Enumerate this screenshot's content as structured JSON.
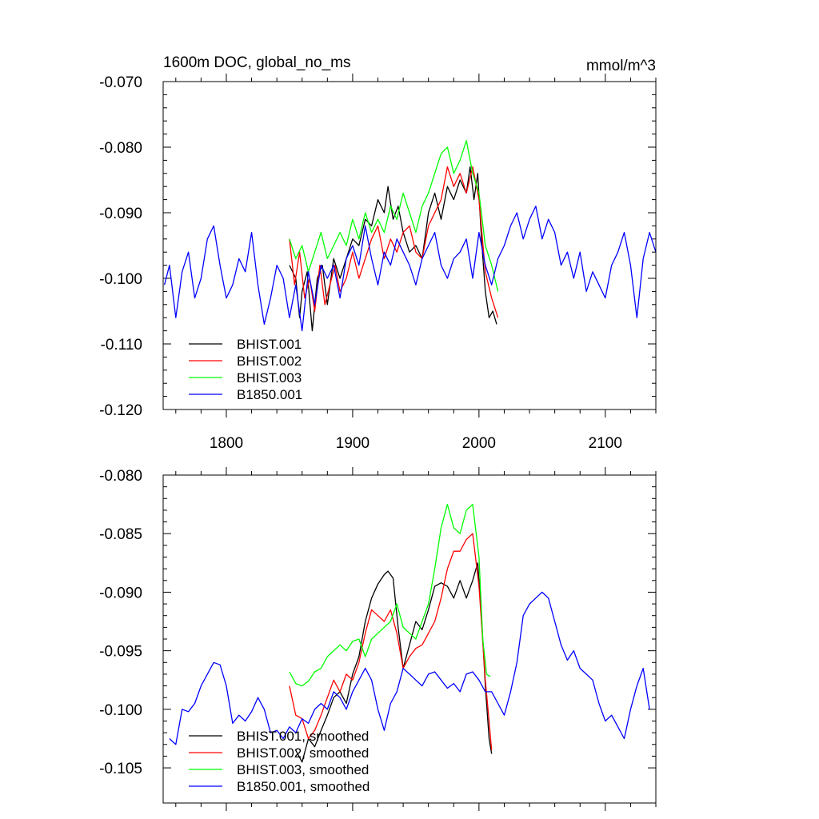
{
  "chart_data": [
    {
      "type": "line",
      "title": "1600m DOC, global_no_ms",
      "units_label": "mmol/m^3",
      "xlim": [
        1750,
        2140
      ],
      "ylim": [
        -0.12,
        -0.07
      ],
      "xticks": [
        1800,
        1900,
        2000,
        2100
      ],
      "yticks": [
        -0.12,
        -0.11,
        -0.1,
        -0.09,
        -0.08,
        -0.07
      ],
      "ytick_labels": [
        "-0.120",
        "-0.110",
        "-0.100",
        "-0.090",
        "-0.080",
        "-0.070"
      ],
      "legend_position": "bottom-left",
      "grid": false,
      "series": [
        {
          "name": "BHIST.001",
          "color": "#000000",
          "x": [
            1850,
            1855,
            1858,
            1860,
            1864,
            1868,
            1872,
            1876,
            1880,
            1885,
            1890,
            1895,
            1900,
            1905,
            1910,
            1915,
            1920,
            1925,
            1928,
            1932,
            1936,
            1940,
            1945,
            1950,
            1955,
            1960,
            1965,
            1970,
            1975,
            1980,
            1985,
            1990,
            1993,
            1996,
            1999,
            2002,
            2005,
            2008,
            2011,
            2014
          ],
          "y": [
            -0.098,
            -0.1,
            -0.106,
            -0.102,
            -0.099,
            -0.108,
            -0.1,
            -0.098,
            -0.104,
            -0.097,
            -0.1,
            -0.097,
            -0.094,
            -0.095,
            -0.091,
            -0.092,
            -0.088,
            -0.09,
            -0.086,
            -0.091,
            -0.089,
            -0.093,
            -0.096,
            -0.095,
            -0.097,
            -0.09,
            -0.087,
            -0.091,
            -0.086,
            -0.088,
            -0.085,
            -0.087,
            -0.083,
            -0.088,
            -0.084,
            -0.094,
            -0.102,
            -0.106,
            -0.105,
            -0.107
          ]
        },
        {
          "name": "BHIST.002",
          "color": "#ff0000",
          "x": [
            1850,
            1854,
            1858,
            1862,
            1866,
            1870,
            1874,
            1878,
            1882,
            1886,
            1890,
            1895,
            1900,
            1905,
            1910,
            1915,
            1920,
            1925,
            1930,
            1935,
            1940,
            1945,
            1950,
            1955,
            1960,
            1965,
            1970,
            1975,
            1980,
            1985,
            1990,
            1995,
            2000,
            2005,
            2010,
            2015
          ],
          "y": [
            -0.094,
            -0.101,
            -0.096,
            -0.103,
            -0.1,
            -0.105,
            -0.098,
            -0.104,
            -0.101,
            -0.098,
            -0.102,
            -0.1,
            -0.096,
            -0.1,
            -0.097,
            -0.094,
            -0.092,
            -0.097,
            -0.094,
            -0.096,
            -0.093,
            -0.092,
            -0.096,
            -0.097,
            -0.092,
            -0.09,
            -0.088,
            -0.083,
            -0.086,
            -0.084,
            -0.087,
            -0.083,
            -0.088,
            -0.099,
            -0.103,
            -0.106
          ]
        },
        {
          "name": "BHIST.003",
          "color": "#00ff00",
          "x": [
            1850,
            1855,
            1860,
            1865,
            1870,
            1875,
            1880,
            1885,
            1890,
            1895,
            1900,
            1905,
            1910,
            1915,
            1920,
            1925,
            1930,
            1935,
            1940,
            1945,
            1950,
            1955,
            1960,
            1965,
            1970,
            1975,
            1980,
            1985,
            1990,
            1995,
            2000,
            2005,
            2010,
            2015
          ],
          "y": [
            -0.094,
            -0.097,
            -0.095,
            -0.099,
            -0.096,
            -0.093,
            -0.097,
            -0.095,
            -0.093,
            -0.095,
            -0.091,
            -0.094,
            -0.09,
            -0.093,
            -0.091,
            -0.093,
            -0.089,
            -0.091,
            -0.087,
            -0.09,
            -0.093,
            -0.089,
            -0.087,
            -0.084,
            -0.081,
            -0.08,
            -0.084,
            -0.082,
            -0.079,
            -0.084,
            -0.087,
            -0.095,
            -0.098,
            -0.102
          ]
        },
        {
          "name": "B1850.001",
          "color": "#0000ff",
          "x": [
            1751,
            1755,
            1760,
            1765,
            1770,
            1775,
            1780,
            1785,
            1790,
            1795,
            1800,
            1805,
            1810,
            1815,
            1820,
            1825,
            1830,
            1835,
            1840,
            1845,
            1850,
            1855,
            1860,
            1865,
            1870,
            1875,
            1880,
            1885,
            1890,
            1895,
            1900,
            1905,
            1910,
            1915,
            1920,
            1925,
            1930,
            1935,
            1940,
            1945,
            1950,
            1955,
            1960,
            1965,
            1970,
            1975,
            1980,
            1985,
            1990,
            1995,
            2000,
            2005,
            2010,
            2015,
            2020,
            2025,
            2030,
            2035,
            2040,
            2045,
            2050,
            2055,
            2060,
            2065,
            2070,
            2075,
            2080,
            2085,
            2090,
            2095,
            2100,
            2105,
            2110,
            2115,
            2120,
            2125,
            2130,
            2135,
            2140
          ],
          "y": [
            -0.101,
            -0.098,
            -0.106,
            -0.099,
            -0.096,
            -0.103,
            -0.1,
            -0.094,
            -0.092,
            -0.098,
            -0.103,
            -0.101,
            -0.097,
            -0.099,
            -0.093,
            -0.101,
            -0.107,
            -0.103,
            -0.098,
            -0.1,
            -0.106,
            -0.101,
            -0.108,
            -0.099,
            -0.104,
            -0.098,
            -0.1,
            -0.098,
            -0.103,
            -0.097,
            -0.095,
            -0.098,
            -0.092,
            -0.097,
            -0.101,
            -0.096,
            -0.098,
            -0.094,
            -0.096,
            -0.098,
            -0.101,
            -0.097,
            -0.095,
            -0.093,
            -0.098,
            -0.1,
            -0.097,
            -0.096,
            -0.094,
            -0.1,
            -0.093,
            -0.098,
            -0.101,
            -0.097,
            -0.095,
            -0.092,
            -0.09,
            -0.094,
            -0.091,
            -0.089,
            -0.094,
            -0.091,
            -0.093,
            -0.098,
            -0.096,
            -0.1,
            -0.096,
            -0.102,
            -0.099,
            -0.101,
            -0.103,
            -0.098,
            -0.096,
            -0.093,
            -0.098,
            -0.106,
            -0.097,
            -0.093,
            -0.096
          ]
        }
      ]
    },
    {
      "type": "line",
      "xlim": [
        1750,
        2140
      ],
      "ylim": [
        -0.108,
        -0.08
      ],
      "xticks": [
        1800,
        1900,
        2000,
        2100
      ],
      "yticks": [
        -0.105,
        -0.1,
        -0.095,
        -0.09,
        -0.085,
        -0.08
      ],
      "ytick_labels": [
        "-0.105",
        "-0.100",
        "-0.095",
        "-0.090",
        "-0.085",
        "-0.080"
      ],
      "legend_position": "bottom-left",
      "grid": false,
      "series": [
        {
          "name": "BHIST.001, smoothed",
          "color": "#000000",
          "x": [
            1855,
            1860,
            1865,
            1870,
            1875,
            1880,
            1885,
            1890,
            1895,
            1900,
            1905,
            1910,
            1915,
            1920,
            1925,
            1928,
            1932,
            1936,
            1940,
            1945,
            1950,
            1955,
            1960,
            1965,
            1970,
            1975,
            1980,
            1985,
            1990,
            1995,
            1999,
            2002,
            2005,
            2008,
            2010
          ],
          "y": [
            -0.1035,
            -0.1045,
            -0.1025,
            -0.1032,
            -0.1018,
            -0.1005,
            -0.099,
            -0.0985,
            -0.0995,
            -0.097,
            -0.0955,
            -0.0925,
            -0.0905,
            -0.0893,
            -0.0885,
            -0.0882,
            -0.0888,
            -0.093,
            -0.0965,
            -0.0945,
            -0.0925,
            -0.0932,
            -0.0915,
            -0.0895,
            -0.0892,
            -0.0895,
            -0.0905,
            -0.089,
            -0.0905,
            -0.089,
            -0.0875,
            -0.092,
            -0.098,
            -0.1025,
            -0.1038
          ]
        },
        {
          "name": "BHIST.002, smoothed",
          "color": "#ff0000",
          "x": [
            1850,
            1855,
            1860,
            1865,
            1870,
            1875,
            1880,
            1885,
            1890,
            1895,
            1900,
            1905,
            1910,
            1915,
            1920,
            1925,
            1930,
            1935,
            1940,
            1945,
            1950,
            1955,
            1960,
            1965,
            1970,
            1975,
            1980,
            1985,
            1990,
            1995,
            2000,
            2005,
            2008,
            2010
          ],
          "y": [
            -0.098,
            -0.1005,
            -0.1008,
            -0.1025,
            -0.1018,
            -0.1005,
            -0.099,
            -0.0975,
            -0.0985,
            -0.097,
            -0.0975,
            -0.096,
            -0.0935,
            -0.0915,
            -0.092,
            -0.0925,
            -0.0915,
            -0.0935,
            -0.0965,
            -0.0955,
            -0.0948,
            -0.0945,
            -0.0935,
            -0.0925,
            -0.0905,
            -0.088,
            -0.0865,
            -0.0865,
            -0.0855,
            -0.085,
            -0.0895,
            -0.0975,
            -0.101,
            -0.1035
          ]
        },
        {
          "name": "BHIST.003, smoothed",
          "color": "#00ff00",
          "x": [
            1850,
            1855,
            1860,
            1865,
            1870,
            1875,
            1880,
            1885,
            1890,
            1895,
            1900,
            1905,
            1910,
            1915,
            1920,
            1925,
            1930,
            1935,
            1940,
            1945,
            1950,
            1955,
            1960,
            1965,
            1970,
            1975,
            1980,
            1985,
            1990,
            1995,
            2000,
            2003,
            2006,
            2009
          ],
          "y": [
            -0.0968,
            -0.0978,
            -0.098,
            -0.0976,
            -0.0968,
            -0.0965,
            -0.0955,
            -0.095,
            -0.0945,
            -0.095,
            -0.0942,
            -0.094,
            -0.0955,
            -0.094,
            -0.0935,
            -0.093,
            -0.0925,
            -0.091,
            -0.093,
            -0.0935,
            -0.094,
            -0.0925,
            -0.091,
            -0.088,
            -0.0845,
            -0.0825,
            -0.0845,
            -0.085,
            -0.083,
            -0.0825,
            -0.087,
            -0.094,
            -0.097,
            -0.0972
          ]
        },
        {
          "name": "B1850.001, smoothed",
          "color": "#0000ff",
          "x": [
            1755,
            1760,
            1765,
            1770,
            1775,
            1780,
            1785,
            1790,
            1795,
            1800,
            1805,
            1810,
            1815,
            1820,
            1825,
            1830,
            1835,
            1840,
            1845,
            1850,
            1855,
            1860,
            1865,
            1870,
            1875,
            1880,
            1885,
            1890,
            1895,
            1900,
            1905,
            1910,
            1915,
            1920,
            1925,
            1930,
            1935,
            1940,
            1945,
            1950,
            1955,
            1960,
            1965,
            1970,
            1975,
            1980,
            1985,
            1990,
            1995,
            2000,
            2005,
            2010,
            2015,
            2020,
            2025,
            2030,
            2035,
            2040,
            2045,
            2050,
            2055,
            2060,
            2065,
            2070,
            2075,
            2080,
            2085,
            2090,
            2095,
            2100,
            2105,
            2110,
            2115,
            2120,
            2125,
            2130,
            2135
          ],
          "y": [
            -0.1025,
            -0.103,
            -0.1,
            -0.1002,
            -0.0995,
            -0.098,
            -0.097,
            -0.096,
            -0.0962,
            -0.098,
            -0.1012,
            -0.1005,
            -0.101,
            -0.1002,
            -0.099,
            -0.1,
            -0.102,
            -0.1018,
            -0.1025,
            -0.1015,
            -0.102,
            -0.1008,
            -0.1012,
            -0.1,
            -0.0995,
            -0.1,
            -0.0985,
            -0.099,
            -0.1,
            -0.0985,
            -0.0975,
            -0.0965,
            -0.0975,
            -0.1,
            -0.1018,
            -0.0995,
            -0.0985,
            -0.0965,
            -0.097,
            -0.0975,
            -0.098,
            -0.097,
            -0.0968,
            -0.0975,
            -0.0982,
            -0.0978,
            -0.0985,
            -0.097,
            -0.0968,
            -0.0975,
            -0.0985,
            -0.0985,
            -0.0995,
            -0.1005,
            -0.0985,
            -0.096,
            -0.092,
            -0.091,
            -0.0905,
            -0.09,
            -0.0905,
            -0.0925,
            -0.0945,
            -0.0958,
            -0.095,
            -0.0965,
            -0.097,
            -0.0975,
            -0.0995,
            -0.101,
            -0.1005,
            -0.1015,
            -0.1025,
            -0.1,
            -0.098,
            -0.0965,
            -0.1
          ]
        }
      ]
    }
  ]
}
